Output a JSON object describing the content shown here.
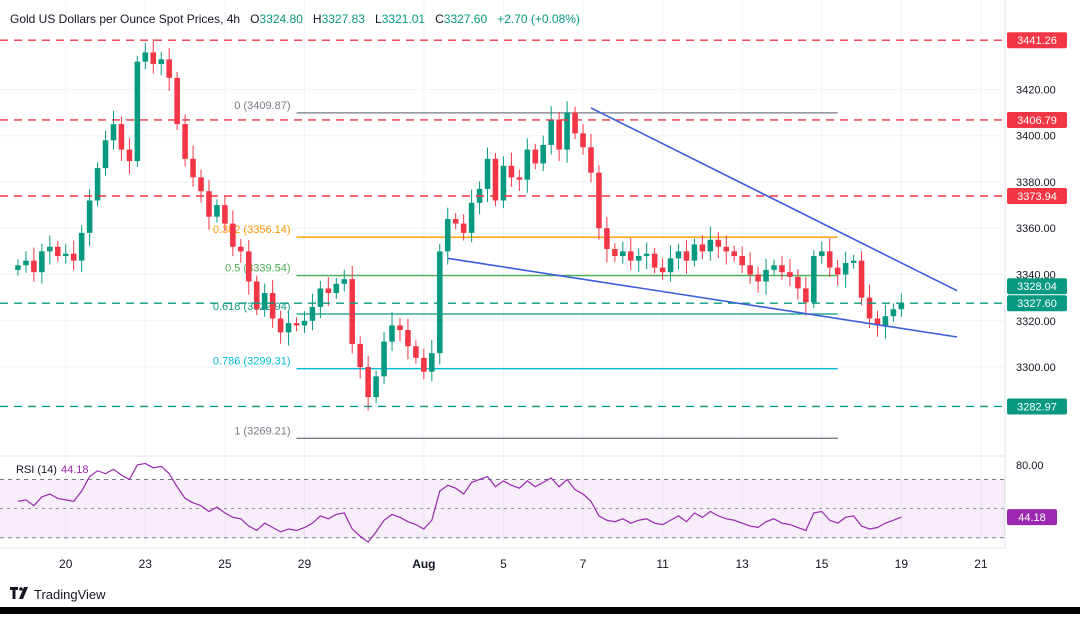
{
  "header": {
    "symbol": "Gold US Dollars per Ounce Spot Prices, 4h",
    "open_label": "O",
    "open": "3324.80",
    "high_label": "H",
    "high": "3327.83",
    "low_label": "L",
    "low": "3321.01",
    "close_label": "C",
    "close": "3327.60",
    "change": "+2.70 (+0.08%)"
  },
  "brand": {
    "icon": "tradingview-logo-icon",
    "name": "TradingView"
  },
  "chart_data": {
    "type": "candlestick",
    "title": "Gold US Dollars per Ounce Spot Prices, 4h",
    "timeframe": "4h",
    "ylim": [
      3262,
      3450
    ],
    "y_ticks": [
      "3420.00",
      "3400.00",
      "3380.00",
      "3360.00",
      "3340.00",
      "3320.00",
      "3300.00"
    ],
    "x_ticks": [
      {
        "label": "20",
        "bar": 6
      },
      {
        "label": "23",
        "bar": 16
      },
      {
        "label": "25",
        "bar": 26
      },
      {
        "label": "29",
        "bar": 36
      },
      {
        "label": "Aug",
        "bar": 51
      },
      {
        "label": "5",
        "bar": 61
      },
      {
        "label": "7",
        "bar": 71
      },
      {
        "label": "11",
        "bar": 81
      },
      {
        "label": "13",
        "bar": 91
      },
      {
        "label": "15",
        "bar": 101
      },
      {
        "label": "19",
        "bar": 111
      },
      {
        "label": "21",
        "bar": 121
      }
    ],
    "closes": [
      3344,
      3346,
      3341,
      3350,
      3352,
      3348,
      3349,
      3346,
      3358,
      3372,
      3386,
      3398,
      3405,
      3394,
      3389,
      3432,
      3436,
      3431,
      3433,
      3425,
      3405,
      3390,
      3382,
      3376,
      3365,
      3370,
      3362,
      3352,
      3350,
      3337,
      3325,
      3332,
      3321,
      3315,
      3319,
      3318,
      3320,
      3326,
      3334,
      3332,
      3336,
      3338,
      3310,
      3300,
      3287,
      3296,
      3311,
      3318,
      3316,
      3309,
      3304,
      3298,
      3306,
      3350,
      3364,
      3362,
      3358,
      3371,
      3377,
      3390,
      3372,
      3387,
      3382,
      3381,
      3394,
      3388,
      3396,
      3407,
      3394,
      3410,
      3401,
      3395,
      3384,
      3360,
      3351,
      3348,
      3350,
      3346,
      3348,
      3349,
      3343,
      3341,
      3347,
      3350,
      3346,
      3353,
      3350,
      3355,
      3352,
      3350,
      3348,
      3344,
      3340,
      3337,
      3342,
      3344,
      3341,
      3339,
      3334,
      3328,
      3348,
      3350,
      3343,
      3340,
      3345,
      3346,
      3330,
      3321,
      3318,
      3322,
      3325,
      3327.6
    ],
    "fibonacci": [
      {
        "level": "0",
        "price": 3409.87,
        "label": "0 (3409.87)",
        "color": "#787b86"
      },
      {
        "level": "0.382",
        "price": 3356.14,
        "label": "0.382 (3356.14)",
        "color": "#ff9800"
      },
      {
        "level": "0.5",
        "price": 3339.54,
        "label": "0.5 (3339.54)",
        "color": "#4caf50"
      },
      {
        "level": "0.618",
        "price": 3322.94,
        "label": "0.618 (3322.94)",
        "color": "#089981"
      },
      {
        "level": "0.786",
        "price": 3299.31,
        "label": "0.786 (3299.31)",
        "color": "#00bcd4"
      },
      {
        "level": "1",
        "price": 3269.21,
        "label": "1 (3269.21)",
        "color": "#787b86"
      }
    ],
    "horizontal_levels": [
      {
        "price": 3441.26,
        "label": "3441.26",
        "color": "#f23645",
        "style": "dashed"
      },
      {
        "price": 3406.79,
        "label": "3406.79",
        "color": "#f23645",
        "style": "dashed"
      },
      {
        "price": 3373.94,
        "label": "3373.94",
        "color": "#f23645",
        "style": "dashed"
      },
      {
        "price": 3282.97,
        "label": "3282.97",
        "color": "#089981",
        "style": "dashed"
      },
      {
        "price": 3327.6,
        "label": "3327.60",
        "color": "#089981",
        "style": "dashed"
      }
    ],
    "price_tags": [
      {
        "price": 3328.04,
        "label": "3328.04",
        "color": "#089981"
      },
      {
        "price": 3327.6,
        "label": "3327.60",
        "color": "#089981"
      }
    ],
    "trendlines": [
      {
        "from": {
          "bar": 72,
          "price": 3412
        },
        "to": {
          "bar": 118,
          "price": 3333
        },
        "color": "#3a5fd9"
      },
      {
        "from": {
          "bar": 54,
          "price": 3347
        },
        "to": {
          "bar": 118,
          "price": 3313
        },
        "color": "#3a5fd9"
      }
    ],
    "colors": {
      "up": "#089981",
      "down": "#f23645",
      "rsi": "#9c27b0",
      "rsi_band": "#9c27b0"
    },
    "rsi": {
      "name": "RSI (14)",
      "value": "44.18",
      "ylim": [
        25,
        82
      ],
      "ticks": [
        "80.00"
      ],
      "band": [
        30,
        70
      ],
      "values": [
        55,
        56,
        52,
        58,
        60,
        57,
        56,
        55,
        62,
        72,
        76,
        74,
        77,
        73,
        70,
        80,
        81,
        78,
        79,
        74,
        65,
        57,
        54,
        52,
        48,
        51,
        47,
        44,
        43,
        38,
        35,
        40,
        37,
        34,
        36,
        35,
        37,
        40,
        45,
        43,
        46,
        47,
        36,
        31,
        27,
        34,
        42,
        46,
        44,
        41,
        39,
        36,
        42,
        62,
        66,
        64,
        60,
        68,
        70,
        72,
        65,
        69,
        66,
        64,
        69,
        65,
        68,
        71,
        65,
        70,
        63,
        60,
        55,
        45,
        42,
        41,
        43,
        40,
        42,
        43,
        40,
        39,
        42,
        45,
        41,
        47,
        44,
        48,
        45,
        43,
        42,
        40,
        38,
        37,
        41,
        43,
        40,
        39,
        37,
        35,
        47,
        48,
        42,
        40,
        44,
        45,
        38,
        36,
        37,
        40,
        42,
        44.18
      ]
    }
  }
}
